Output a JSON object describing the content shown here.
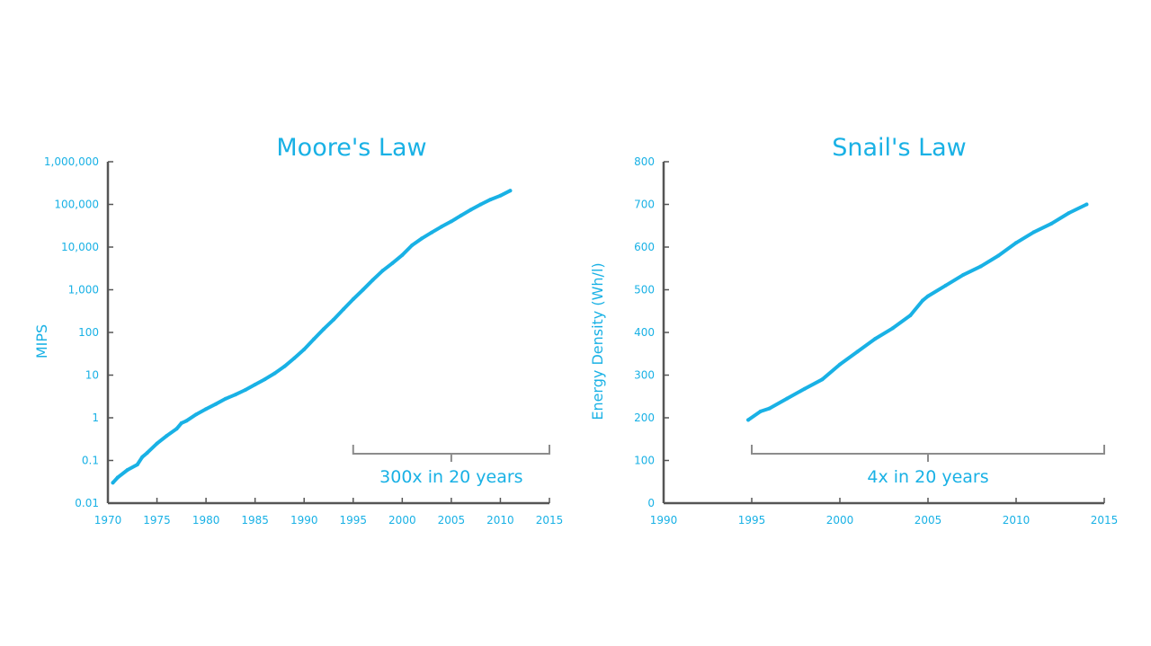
{
  "colors": {
    "accent": "#19b1e5",
    "axis": "#555555",
    "bracket": "#8c8c8c",
    "background": "#ffffff"
  },
  "chart_data": [
    {
      "type": "line",
      "title": "Moore's Law",
      "xlabel": "",
      "ylabel": "MIPS",
      "yscale": "log",
      "xlim": [
        1970,
        2015
      ],
      "ylim": [
        0.01,
        1000000
      ],
      "xticks": [
        1970,
        1975,
        1980,
        1985,
        1990,
        1995,
        2000,
        2005,
        2010,
        2015
      ],
      "xtick_labels": [
        "1970",
        "1975",
        "1980",
        "1985",
        "1990",
        "1995",
        "2000",
        "2005",
        "2010",
        "2015"
      ],
      "yticks": [
        0.01,
        0.1,
        1,
        10,
        100,
        1000,
        10000,
        100000,
        1000000
      ],
      "ytick_labels": [
        "0.01",
        "0.1",
        "1",
        "10",
        "100",
        "1,000",
        "10,000",
        "100,000",
        "1,000,000"
      ],
      "grid": false,
      "series": [
        {
          "x": [
            1970.5,
            1971,
            1972,
            1973,
            1973.5,
            1974,
            1975,
            1976,
            1977,
            1977.5,
            1978,
            1979,
            1980,
            1981,
            1982,
            1983,
            1984,
            1985,
            1986,
            1987,
            1988,
            1989,
            1990,
            1991,
            1992,
            1993,
            1994,
            1995,
            1996,
            1997,
            1998,
            1999,
            2000,
            2001,
            2002,
            2003,
            2004,
            2005,
            2006,
            2007,
            2008,
            2009,
            2010,
            2011
          ],
          "y": [
            0.03,
            0.04,
            0.06,
            0.08,
            0.12,
            0.15,
            0.25,
            0.38,
            0.55,
            0.75,
            0.85,
            1.2,
            1.6,
            2.1,
            2.8,
            3.5,
            4.5,
            6,
            8,
            11,
            16,
            25,
            40,
            70,
            120,
            200,
            350,
            600,
            1000,
            1700,
            2800,
            4200,
            6500,
            11000,
            16000,
            22000,
            30000,
            40000,
            55000,
            75000,
            100000,
            130000,
            160000,
            210000
          ]
        }
      ],
      "annotations": [
        {
          "text": "300x in 20 years",
          "x_from": 1995,
          "x_to": 2015
        }
      ]
    },
    {
      "type": "line",
      "title": "Snail's Law",
      "xlabel": "",
      "ylabel": "Energy Density (Wh/l)",
      "yscale": "linear",
      "xlim": [
        1990,
        2015
      ],
      "ylim": [
        0,
        800
      ],
      "xticks": [
        1990,
        1995,
        2000,
        2005,
        2010,
        2015
      ],
      "xtick_labels": [
        "1990",
        "1995",
        "2000",
        "2005",
        "2010",
        "2015"
      ],
      "yticks": [
        0,
        100,
        200,
        300,
        400,
        500,
        600,
        700,
        800
      ],
      "ytick_labels": [
        "0",
        "100",
        "200",
        "300",
        "400",
        "500",
        "600",
        "700",
        "800"
      ],
      "grid": false,
      "series": [
        {
          "x": [
            1994.8,
            1995.5,
            1996,
            1997,
            1998,
            1999,
            2000,
            2001,
            2002,
            2003,
            2004,
            2004.7,
            2005,
            2006,
            2007,
            2008,
            2009,
            2010,
            2011,
            2012,
            2013,
            2014
          ],
          "y": [
            195,
            215,
            222,
            245,
            268,
            290,
            325,
            355,
            385,
            410,
            440,
            475,
            485,
            510,
            535,
            555,
            580,
            610,
            635,
            655,
            680,
            700
          ]
        }
      ],
      "annotations": [
        {
          "text": "4x in 20 years",
          "x_from": 1995,
          "x_to": 2015
        }
      ]
    }
  ]
}
